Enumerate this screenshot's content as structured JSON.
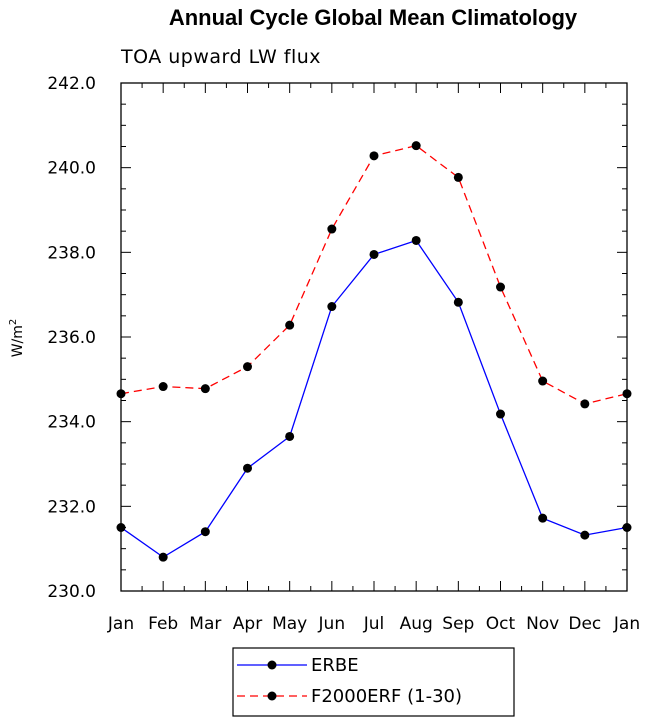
{
  "chart_data": {
    "type": "line",
    "title": "Annual Cycle Global Mean Climatology",
    "subtitle": "TOA upward LW flux",
    "xlabel": "",
    "ylabel": "W/m",
    "ylabel_superscript": "2",
    "categories": [
      "Jan",
      "Feb",
      "Mar",
      "Apr",
      "May",
      "Jun",
      "Jul",
      "Aug",
      "Sep",
      "Oct",
      "Nov",
      "Dec",
      "Jan"
    ],
    "ylim": [
      230.0,
      242.0
    ],
    "yticks": [
      230.0,
      232.0,
      234.0,
      236.0,
      238.0,
      240.0,
      242.0
    ],
    "ytick_labels": [
      "230.0",
      "232.0",
      "234.0",
      "236.0",
      "238.0",
      "240.0",
      "242.0"
    ],
    "grid": false,
    "legend_position": "bottom-center",
    "series": [
      {
        "name": "ERBE",
        "color": "#0000ff",
        "style": "solid",
        "marker": "circle",
        "values": [
          231.5,
          230.8,
          231.4,
          232.9,
          233.65,
          236.72,
          237.95,
          238.28,
          236.82,
          234.18,
          231.72,
          231.32,
          231.5
        ]
      },
      {
        "name": "F2000ERF (1-30)",
        "color": "#ff0000",
        "style": "dashed",
        "marker": "circle",
        "values": [
          234.66,
          234.83,
          234.78,
          235.3,
          236.28,
          238.55,
          240.28,
          240.52,
          239.77,
          237.18,
          234.96,
          234.42,
          234.66
        ]
      }
    ]
  }
}
